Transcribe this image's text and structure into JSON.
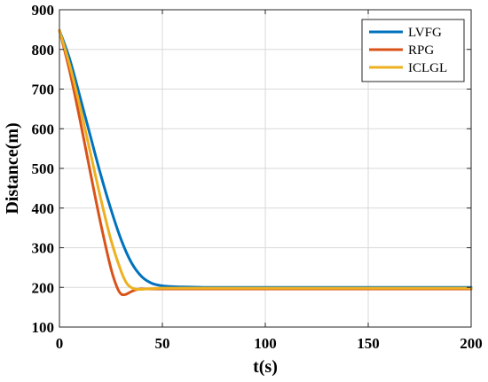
{
  "chart_data": {
    "type": "line",
    "xlabel": "t(s)",
    "ylabel": "Distance(m)",
    "xlim": [
      0,
      200
    ],
    "ylim": [
      100,
      900
    ],
    "xticks": [
      0,
      50,
      100,
      150,
      200
    ],
    "yticks": [
      100,
      200,
      300,
      400,
      500,
      600,
      700,
      800,
      900
    ],
    "grid": true,
    "legend_position": "top-right",
    "series": [
      {
        "name": "LVFG",
        "color": "#0072BD",
        "x": [
          0,
          5,
          10,
          15,
          20,
          25,
          30,
          35,
          40,
          45,
          50,
          55,
          60,
          70,
          80,
          100,
          125,
          150,
          175,
          200
        ],
        "y": [
          848,
          775,
          680,
          582,
          485,
          397,
          320,
          262,
          227,
          210,
          204,
          202,
          201,
          200,
          200,
          200,
          200,
          200,
          200,
          200
        ]
      },
      {
        "name": "RPG",
        "color": "#D95319",
        "x": [
          0,
          5,
          10,
          15,
          20,
          25,
          28,
          30,
          32,
          34,
          36,
          38,
          40,
          45,
          50,
          60,
          80,
          100,
          150,
          200
        ],
        "y": [
          848,
          745,
          622,
          490,
          362,
          248,
          200,
          183,
          182,
          187,
          192,
          195,
          196,
          196,
          196,
          196,
          196,
          196,
          196,
          196
        ]
      },
      {
        "name": "ICLGL",
        "color": "#EDB120",
        "x": [
          0,
          5,
          10,
          15,
          20,
          25,
          30,
          33,
          36,
          39,
          42,
          45,
          50,
          60,
          80,
          100,
          150,
          200
        ],
        "y": [
          848,
          760,
          655,
          540,
          425,
          320,
          240,
          208,
          197,
          195,
          196,
          197,
          198,
          198,
          198,
          198,
          198,
          198
        ]
      }
    ]
  }
}
